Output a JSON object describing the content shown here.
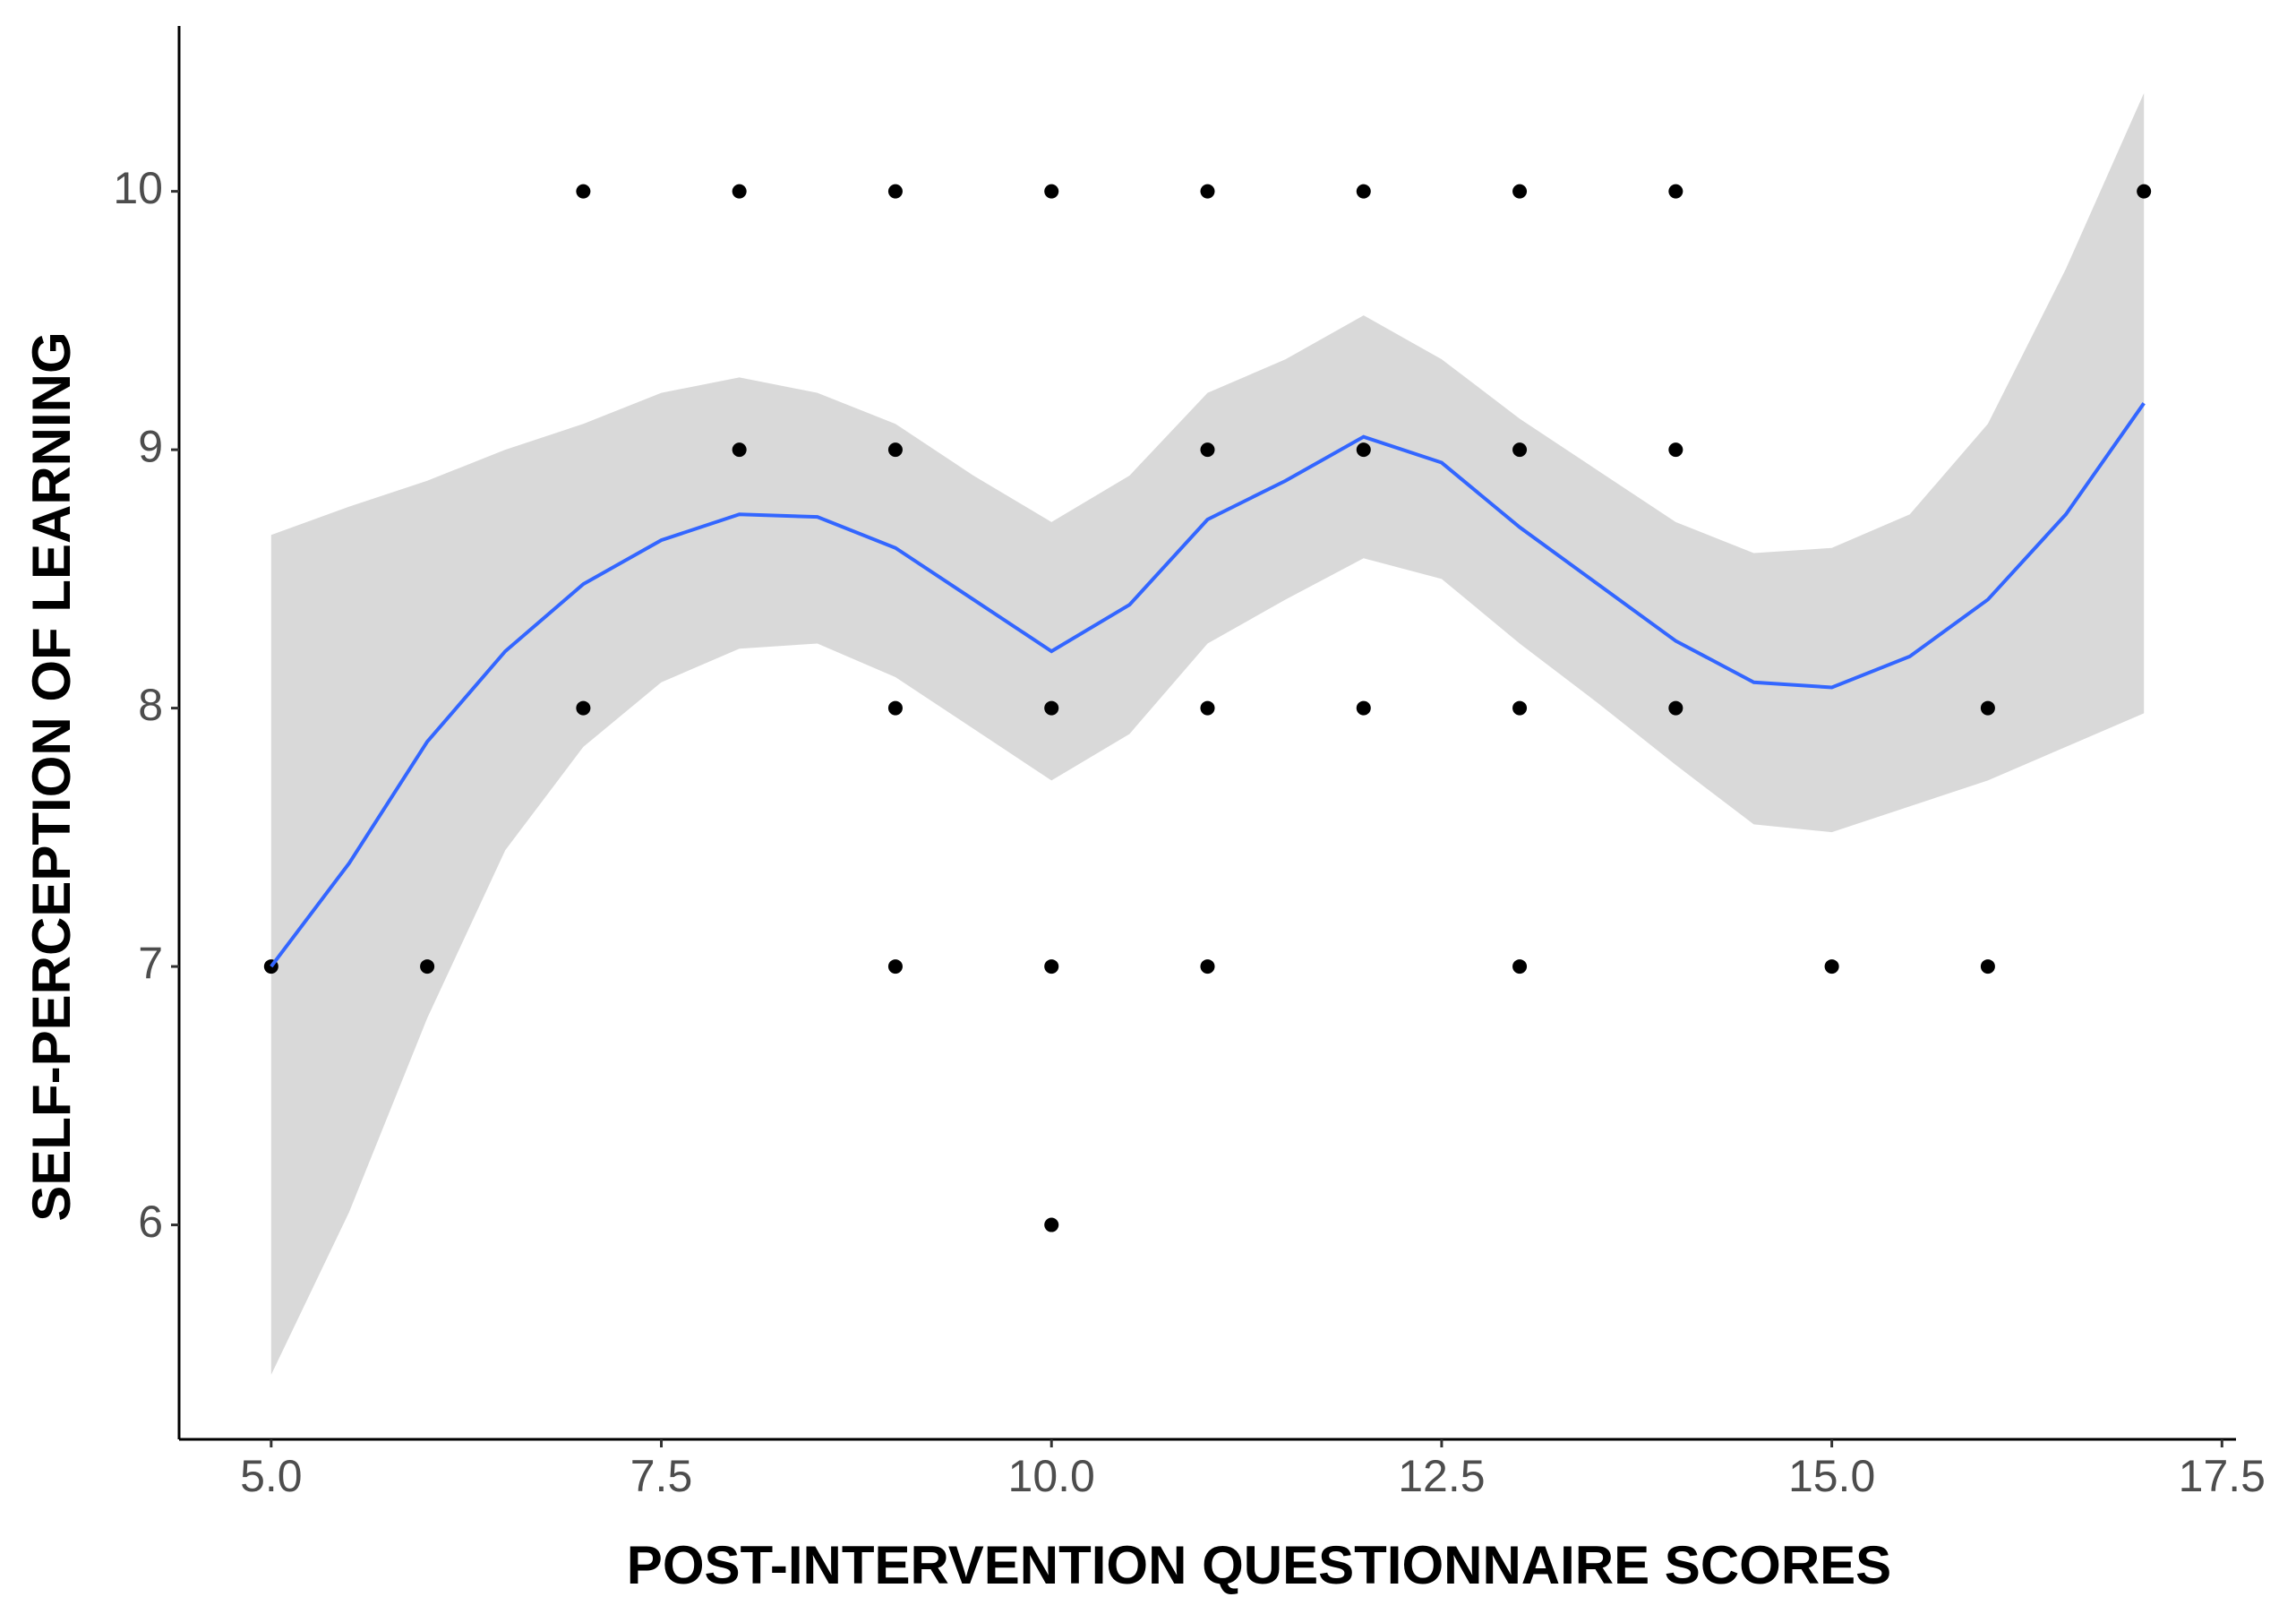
{
  "chart_data": {
    "type": "scatter",
    "x_label": "POST-INTERVENTION QUESTIONNAIRE SCORES",
    "y_label": "SELF-PERCEPTION OF LEARNING",
    "xlim": [
      4.41,
      17.59
    ],
    "ylim": [
      5.17,
      10.64
    ],
    "xticks": [
      {
        "value": 5,
        "label": "5.0"
      },
      {
        "value": 7.5,
        "label": "7.5"
      },
      {
        "value": 10,
        "label": "10.0"
      },
      {
        "value": 12.5,
        "label": "12.5"
      },
      {
        "value": 15,
        "label": "15.0"
      },
      {
        "value": 17.5,
        "label": "17.5"
      }
    ],
    "yticks": [
      6,
      7,
      8,
      9,
      10
    ],
    "points": {
      "color": "#000000",
      "x": [
        7,
        8,
        9,
        10,
        11,
        12,
        13,
        14,
        17,
        8,
        9,
        11,
        12,
        13,
        14,
        7,
        9,
        10,
        11,
        12,
        13,
        14,
        16,
        5,
        6,
        9,
        10,
        11,
        13,
        15,
        16,
        10
      ],
      "y": [
        10,
        10,
        10,
        10,
        10,
        10,
        10,
        10,
        10,
        9,
        9,
        9,
        9,
        9,
        9,
        8,
        8,
        8,
        8,
        8,
        8,
        8,
        8,
        7,
        7,
        7,
        7,
        7,
        7,
        7,
        7,
        6
      ]
    },
    "smooth": {
      "color": "#3366ff",
      "band_color": "#d9d9d9",
      "x": [
        5,
        5.5,
        6,
        6.5,
        7,
        7.5,
        8,
        8.5,
        9,
        9.5,
        10,
        10.5,
        11,
        11.5,
        12,
        12.5,
        13,
        13.5,
        14,
        14.5,
        15,
        15.5,
        16,
        16.5,
        17
      ],
      "y": [
        7.0,
        7.4,
        7.87,
        8.22,
        8.48,
        8.65,
        8.75,
        8.74,
        8.62,
        8.42,
        8.22,
        8.4,
        8.73,
        8.88,
        9.05,
        8.95,
        8.7,
        8.48,
        8.26,
        8.1,
        8.08,
        8.2,
        8.42,
        8.75,
        9.18
      ],
      "upper": [
        8.67,
        8.78,
        8.88,
        9.0,
        9.1,
        9.22,
        9.28,
        9.22,
        9.1,
        8.9,
        8.72,
        8.9,
        9.22,
        9.35,
        9.52,
        9.35,
        9.12,
        8.92,
        8.72,
        8.6,
        8.62,
        8.75,
        9.1,
        9.7,
        10.38
      ],
      "lower": [
        5.42,
        6.05,
        6.8,
        7.45,
        7.85,
        8.1,
        8.23,
        8.25,
        8.12,
        7.92,
        7.72,
        7.9,
        8.25,
        8.42,
        8.58,
        8.5,
        8.25,
        8.02,
        7.78,
        7.55,
        7.52,
        7.62,
        7.72,
        7.85,
        7.98
      ]
    }
  }
}
